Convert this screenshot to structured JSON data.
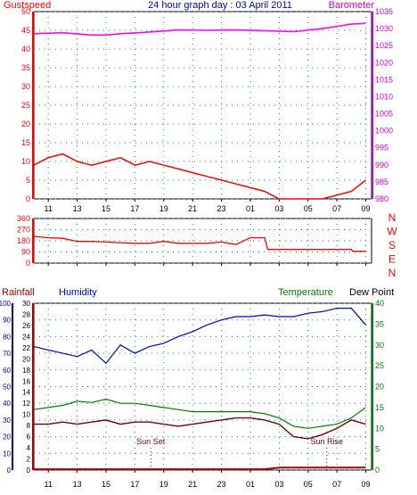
{
  "header": {
    "gust_label": "Gustspeed",
    "title": "24 hour graph day : 03 April 2011",
    "baro_label": "Barometer"
  },
  "time_ticks": [
    "11",
    "13",
    "15",
    "17",
    "19",
    "21",
    "23",
    "01",
    "03",
    "05",
    "07",
    "09"
  ],
  "colors": {
    "gust": "#ff0000",
    "wind_avg": "#0000cc",
    "wind_green": "#009900",
    "barometer": "#ff00ff",
    "wind_dir": "#ff0000",
    "humidity": "#0000cc",
    "temperature": "#008000",
    "dewpoint": "#7a0000",
    "rain": "#aa0000",
    "left_axis": "#ff0000",
    "right_axis_top": "#cc00cc",
    "bottom_left_axis": "#0000cc",
    "bottom_right_axis": "#008000",
    "grid": "#009999"
  },
  "panel_bottom": {
    "rainfall_label": "Rainfall",
    "humidity_label": "Humidity",
    "temperature_label": "Temperature",
    "dewpoint_label": "Dew Point",
    "sunset_label": "Sun Set",
    "sunrise_label": "Sun Rise"
  },
  "chart_data": [
    {
      "type": "line",
      "x_ticks": [
        "11",
        "13",
        "15",
        "17",
        "19",
        "21",
        "23",
        "01",
        "03",
        "05",
        "07",
        "09"
      ],
      "left_axis": {
        "ticks": [
          0,
          5,
          10,
          15,
          20,
          25,
          30,
          35,
          40,
          45,
          50
        ],
        "ylim": [
          0,
          50
        ]
      },
      "right_axis": {
        "ticks": [
          980,
          985,
          990,
          995,
          1000,
          1005,
          1010,
          1015,
          1020,
          1025,
          1030,
          1035
        ],
        "ylim": [
          980,
          1035
        ]
      },
      "series": [
        {
          "name": "Gustspeed",
          "axis": "left",
          "x": [
            10,
            11,
            12,
            13,
            14,
            15,
            16,
            17,
            18,
            19,
            20,
            21,
            22,
            23,
            24,
            25,
            26,
            27,
            28,
            29,
            30,
            31,
            32,
            33
          ],
          "values": [
            9,
            11,
            12,
            10,
            9,
            10,
            11,
            9,
            10,
            9,
            8,
            7,
            6,
            5,
            4,
            3,
            2,
            0,
            0,
            0,
            0,
            1,
            2,
            5
          ]
        },
        {
          "name": "Barometer",
          "axis": "right",
          "x": [
            10,
            12,
            14,
            15,
            16,
            18,
            20,
            22,
            24,
            26,
            28,
            30,
            32,
            33
          ],
          "values": [
            1028.5,
            1028.8,
            1028.1,
            1028.1,
            1028.5,
            1029.0,
            1029.6,
            1029.5,
            1029.6,
            1029.4,
            1029.1,
            1030.0,
            1031.3,
            1031.6
          ]
        }
      ]
    },
    {
      "type": "line",
      "x_ticks": [
        "11",
        "13",
        "15",
        "17",
        "19",
        "21",
        "23",
        "01",
        "03",
        "05",
        "07",
        "09"
      ],
      "y_ticks": [
        0,
        90,
        180,
        270,
        360
      ],
      "ylim": [
        0,
        360
      ],
      "direction_labels": [
        "N",
        "W",
        "S",
        "E",
        "N"
      ],
      "series": [
        {
          "name": "Wind direction",
          "x": [
            10,
            11,
            12,
            13,
            14,
            15,
            16,
            17,
            18,
            19,
            20,
            21,
            22,
            23,
            24,
            25,
            26,
            26.2,
            27,
            30,
            32,
            32.1,
            33
          ],
          "values": [
            215,
            205,
            200,
            175,
            175,
            170,
            165,
            160,
            160,
            175,
            160,
            160,
            160,
            170,
            150,
            205,
            205,
            110,
            110,
            110,
            110,
            95,
            95
          ]
        }
      ]
    },
    {
      "type": "line",
      "x_ticks": [
        "11",
        "13",
        "15",
        "17",
        "19",
        "21",
        "23",
        "01",
        "03",
        "05",
        "07",
        "09"
      ],
      "left_axis_rain": {
        "ticks": [
          0,
          10,
          20,
          30,
          40,
          50,
          60,
          70,
          80,
          90,
          100
        ],
        "ylim": [
          0,
          100
        ]
      },
      "left_axis_humidity": {
        "ticks": [
          0,
          2,
          4,
          6,
          8,
          10,
          12,
          14,
          16,
          18,
          20,
          22,
          24,
          26,
          28,
          30
        ],
        "ylim": [
          0,
          30
        ]
      },
      "right_axis": {
        "ticks": [
          0,
          5,
          10,
          15,
          20,
          25,
          30,
          35,
          40
        ],
        "ylim": [
          0,
          40
        ]
      },
      "series": [
        {
          "name": "Humidity",
          "axis": "left",
          "x": [
            10,
            11,
            12,
            13,
            14,
            15,
            16,
            17,
            18,
            19,
            20,
            21,
            22,
            23,
            24,
            25,
            26,
            27,
            28,
            29,
            30,
            31,
            32,
            33
          ],
          "values": [
            74,
            72,
            70,
            68,
            72,
            64,
            75,
            70,
            74,
            76,
            80,
            83,
            87,
            90,
            92,
            92,
            93,
            92,
            92,
            94,
            95,
            97,
            97,
            87
          ]
        },
        {
          "name": "Temperature",
          "axis": "right",
          "x": [
            10,
            11,
            12,
            13,
            14,
            15,
            16,
            17,
            18,
            19,
            20,
            21,
            22,
            23,
            24,
            25,
            26,
            27,
            28,
            29,
            30,
            31,
            32,
            33
          ],
          "values": [
            14.5,
            15,
            15.5,
            16.5,
            16.2,
            17,
            16,
            16,
            15.5,
            15,
            14.5,
            14,
            14,
            14,
            14,
            14,
            13.5,
            12.5,
            10.5,
            10,
            10.5,
            11,
            12.5,
            15
          ]
        },
        {
          "name": "Dew Point",
          "axis": "right",
          "x": [
            10,
            11,
            12,
            13,
            14,
            15,
            16,
            17,
            18,
            19,
            20,
            21,
            22,
            23,
            24,
            25,
            26,
            27,
            28,
            29,
            30,
            31,
            32,
            33
          ],
          "values": [
            11,
            11,
            11.5,
            11,
            11.5,
            12,
            11,
            11.5,
            11.5,
            11,
            10.5,
            11,
            11.5,
            12,
            12.5,
            12.5,
            12,
            11,
            8,
            7.5,
            8.5,
            10,
            12,
            11
          ]
        },
        {
          "name": "Rainfall",
          "axis": "left",
          "x": [
            10,
            26,
            27,
            33
          ],
          "values": [
            0.5,
            0.5,
            1.5,
            1.5
          ]
        }
      ],
      "markers": [
        {
          "label": "Sun Set",
          "x": 18.1
        },
        {
          "label": "Sun Rise",
          "x": 30.3
        }
      ]
    }
  ]
}
